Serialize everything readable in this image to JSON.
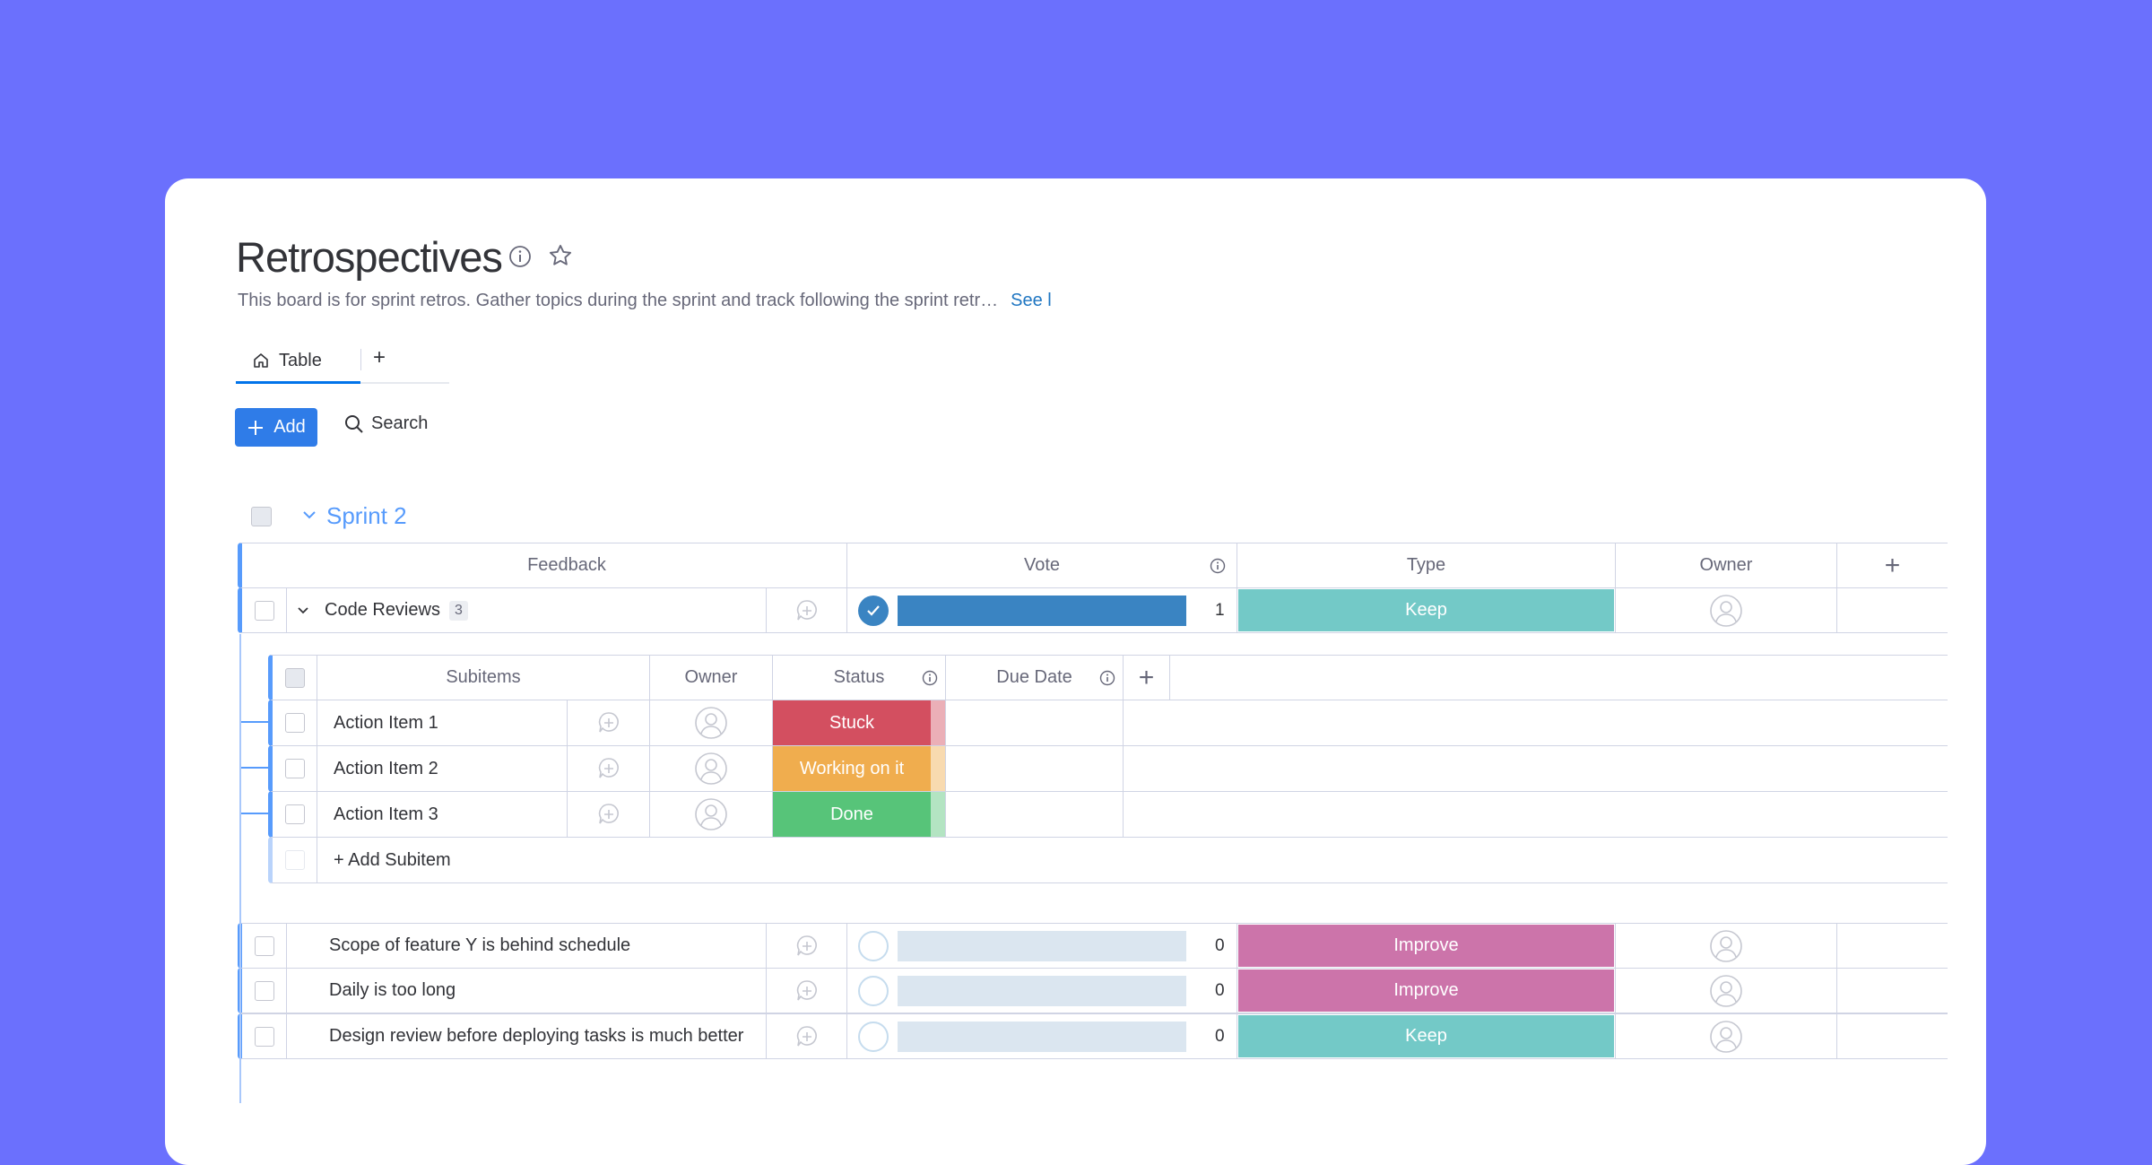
{
  "board": {
    "title": "Retrospectives",
    "description": "This board is for sprint retros. Gather topics during the sprint and track following the sprint retr…",
    "see_more": "See l"
  },
  "tabs": [
    {
      "label": "Table",
      "icon": "home-icon"
    }
  ],
  "toolbar": {
    "add_label": "Add",
    "search_label": "Search",
    "add_view": "+"
  },
  "group": {
    "name": "Sprint 2",
    "color": "#579bfc"
  },
  "columns": {
    "feedback": "Feedback",
    "vote": "Vote",
    "type": "Type",
    "owner": "Owner",
    "add": "+"
  },
  "subcolumns": {
    "subitems": "Subitems",
    "owner": "Owner",
    "status": "Status",
    "due_date": "Due Date",
    "add": "+"
  },
  "colors": {
    "vote_active": "#3a84c2",
    "vote_empty": "#dbe6f0",
    "keep": "#73c9c7",
    "improve": "#cc74aa",
    "stuck": "#d34f60",
    "working": "#f0ad4e",
    "done": "#57c479",
    "accent": "#2f7ce8"
  },
  "items": [
    {
      "name": "Code Reviews",
      "subitem_count": "3",
      "voted": true,
      "vote_fill": 1,
      "votes": "1",
      "type": "Keep",
      "expanded": true
    },
    {
      "name": "Scope of feature Y is behind schedule",
      "voted": false,
      "vote_fill": 0,
      "votes": "0",
      "type": "Improve"
    },
    {
      "name": "Daily is too long",
      "voted": false,
      "vote_fill": 0,
      "votes": "0",
      "type": "Improve"
    },
    {
      "name": "Design review before deploying tasks is much better",
      "voted": false,
      "vote_fill": 0,
      "votes": "0",
      "type": "Keep"
    }
  ],
  "subitems": [
    {
      "name": "Action Item 1",
      "status": "Stuck",
      "status_key": "stuck"
    },
    {
      "name": "Action Item 2",
      "status": "Working on it",
      "status_key": "working"
    },
    {
      "name": "Action Item 3",
      "status": "Done",
      "status_key": "done"
    }
  ],
  "add_subitem": "+ Add Subitem"
}
